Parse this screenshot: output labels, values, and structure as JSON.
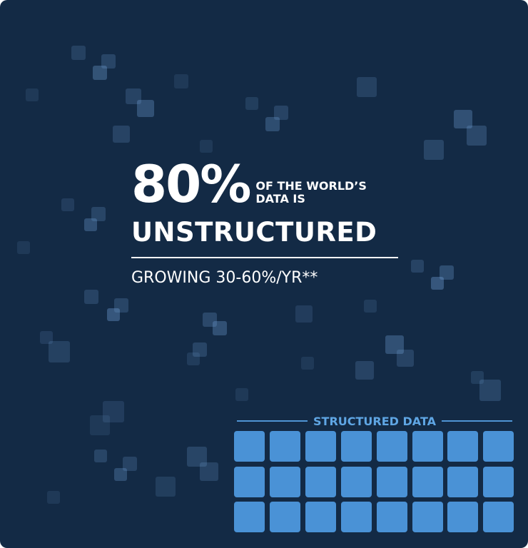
{
  "headline": {
    "percent": "80%",
    "of_line1": "OF THE WORLD’S",
    "of_line2": "DATA IS",
    "main": "UNSTRUCTURED",
    "sub": "GROWING 30-60%/YR**"
  },
  "structured": {
    "label": "STRUCTURED DATA",
    "rows": 3,
    "cols": 8
  },
  "colors": {
    "background": "#132a45",
    "accent": "#4a92d6",
    "text": "#ffffff"
  }
}
